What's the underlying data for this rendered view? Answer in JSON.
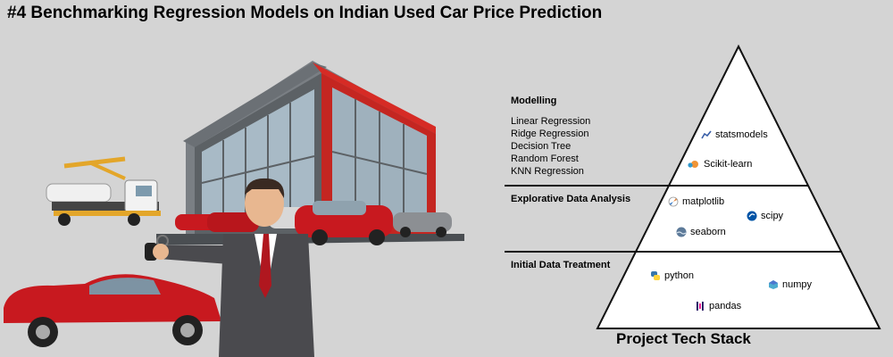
{
  "title": "#4 Benchmarking Regression Models on Indian Used Car Price Prediction",
  "sections": {
    "modelling": {
      "title": "Modelling",
      "models": [
        "Linear Regression",
        "Ridge Regression",
        "Decision Tree",
        "Random Forest",
        "KNN Regression"
      ]
    },
    "eda": {
      "title": "Explorative Data Analysis"
    },
    "treatment": {
      "title": "Initial Data Treatment"
    }
  },
  "tech_stack": {
    "top": [
      {
        "name": "statsmodels",
        "icon": "statsmodels-icon"
      },
      {
        "name": "Scikit-learn",
        "icon": "scikit-learn-icon"
      }
    ],
    "middle": [
      {
        "name": "matplotlib",
        "icon": "matplotlib-icon"
      },
      {
        "name": "scipy",
        "icon": "scipy-icon"
      },
      {
        "name": "seaborn",
        "icon": "seaborn-icon"
      }
    ],
    "bottom": [
      {
        "name": "python",
        "icon": "python-icon"
      },
      {
        "name": "numpy",
        "icon": "numpy-icon"
      },
      {
        "name": "pandas",
        "icon": "pandas-icon"
      }
    ]
  },
  "footer": "Project Tech Stack",
  "colors": {
    "background": "#d4d4d4",
    "car_red": "#c8191f",
    "showroom_red": "#d62b25",
    "showroom_gray": "#5c6165",
    "glass": "#9fb1bd",
    "suit": "#4a4a4e",
    "tie": "#b0171f",
    "truck_yellow": "#e3a62a"
  }
}
